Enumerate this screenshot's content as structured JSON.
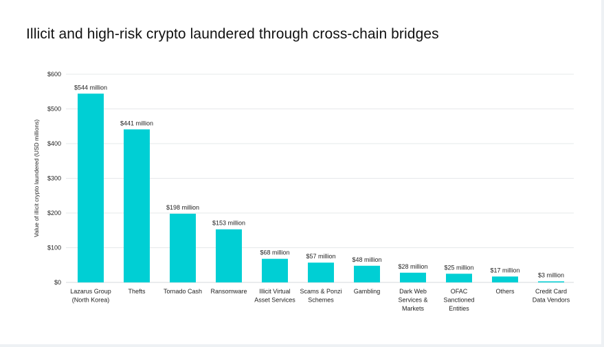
{
  "title": "Illicit and high-risk crypto laundered through cross-chain bridges",
  "chart_data": {
    "type": "bar",
    "title": "Illicit and high-risk crypto laundered through cross-chain bridges",
    "ylabel": "Value of illicit crypto laundered (USD millions)",
    "xlabel": "",
    "ylim": [
      0,
      600
    ],
    "yticks": [
      0,
      100,
      200,
      300,
      400,
      500,
      600
    ],
    "ytick_labels": [
      "$0",
      "$100",
      "$200",
      "$300",
      "$400",
      "$500",
      "$600"
    ],
    "grid": true,
    "bar_color": "#00cfd4",
    "categories": [
      [
        "Lazarus Group",
        "(North Korea)"
      ],
      [
        "Thefts"
      ],
      [
        "Tornado Cash"
      ],
      [
        "Ransomware"
      ],
      [
        "Illicit Virtual",
        "Asset Services"
      ],
      [
        "Scams & Ponzi",
        "Schemes"
      ],
      [
        "Gambling"
      ],
      [
        "Dark Web",
        "Services &",
        "Markets"
      ],
      [
        "OFAC",
        "Sanctioned",
        "Entities"
      ],
      [
        "Others"
      ],
      [
        "Credit Card",
        "Data Vendors"
      ]
    ],
    "values": [
      544,
      441,
      198,
      153,
      68,
      57,
      48,
      28,
      25,
      17,
      3
    ],
    "data_labels": [
      "$544 million",
      "$441 million",
      "$198 million",
      "$153 million",
      "$68 million",
      "$57 million",
      "$48 million",
      "$28 million",
      "$25 million",
      "$17 million",
      "$3 million"
    ]
  }
}
